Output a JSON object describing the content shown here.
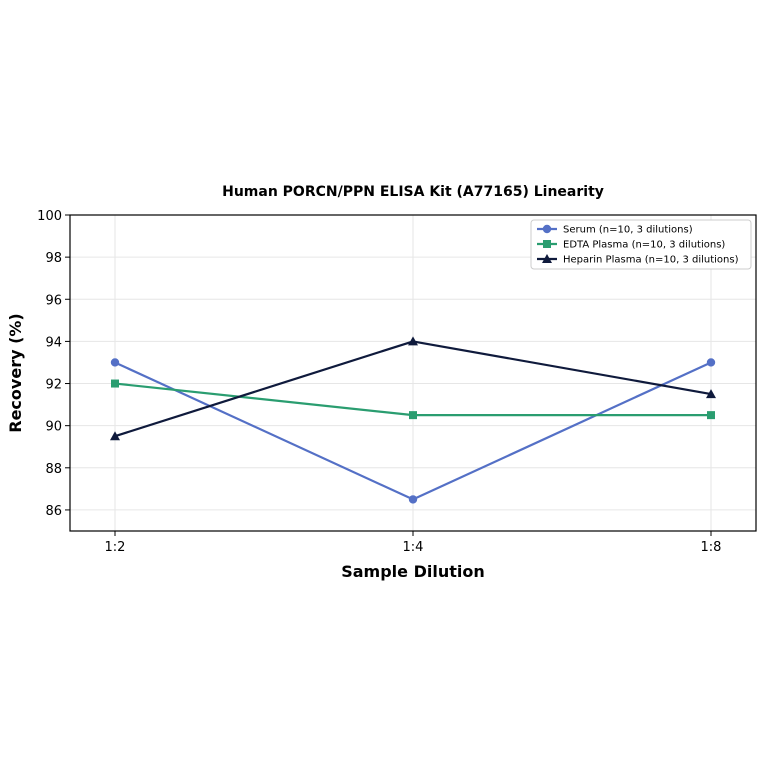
{
  "chart_data": {
    "type": "line",
    "title": "Human PORCN/PPN ELISA Kit (A77165) Linearity",
    "xlabel": "Sample Dilution",
    "ylabel": "Recovery (%)",
    "categories": [
      "1:2",
      "1:4",
      "1:8"
    ],
    "ylim": [
      85,
      100
    ],
    "yticks": [
      86,
      88,
      90,
      92,
      94,
      96,
      98,
      100
    ],
    "grid": true,
    "legend_position": "top-right",
    "series": [
      {
        "name": "Serum (n=10, 3 dilutions)",
        "values": [
          93,
          86.5,
          93
        ],
        "color": "#5470c6",
        "marker": "circle"
      },
      {
        "name": "EDTA Plasma (n=10, 3 dilutions)",
        "values": [
          92,
          90.5,
          90.5
        ],
        "color": "#2a9d70",
        "marker": "square"
      },
      {
        "name": "Heparin Plasma (n=10, 3 dilutions)",
        "values": [
          89.5,
          94,
          91.5
        ],
        "color": "#0f1a3c",
        "marker": "triangle"
      }
    ]
  }
}
